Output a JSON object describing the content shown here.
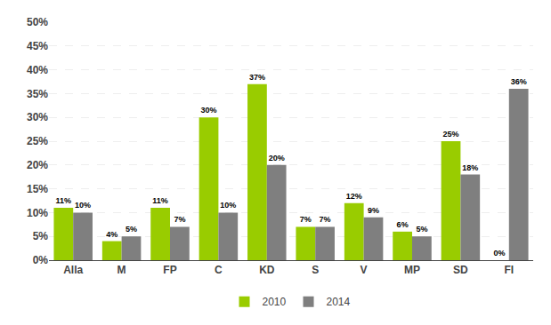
{
  "chart_data": {
    "type": "bar",
    "categories": [
      "Alla",
      "M",
      "FP",
      "C",
      "KD",
      "S",
      "V",
      "MP",
      "SD",
      "FI"
    ],
    "series": [
      {
        "name": "2010",
        "color": "#99cc00",
        "values": [
          11,
          4,
          11,
          30,
          37,
          7,
          12,
          6,
          25,
          0
        ],
        "value_labels": [
          "11%",
          "4%",
          "11%",
          "30%",
          "37%",
          "7%",
          "12%",
          "6%",
          "25%",
          "0%"
        ]
      },
      {
        "name": "2014",
        "color": "#7f7f7f",
        "values": [
          10,
          5,
          7,
          10,
          20,
          7,
          9,
          5,
          18,
          36
        ],
        "value_labels": [
          "10%",
          "5%",
          "7%",
          "10%",
          "20%",
          "7%",
          "9%",
          "5%",
          "18%",
          "36%"
        ]
      }
    ],
    "ylim": [
      0,
      50
    ],
    "yticks": [
      {
        "value": 0,
        "label": "0%"
      },
      {
        "value": 5,
        "label": "5%"
      },
      {
        "value": 10,
        "label": "10%"
      },
      {
        "value": 15,
        "label": "15%"
      },
      {
        "value": 20,
        "label": "20%"
      },
      {
        "value": 25,
        "label": "25%"
      },
      {
        "value": 30,
        "label": "30%"
      },
      {
        "value": 35,
        "label": "35%"
      },
      {
        "value": 40,
        "label": "40%"
      },
      {
        "value": 45,
        "label": "45%"
      },
      {
        "value": 50,
        "label": "50%"
      }
    ],
    "grid": true,
    "legend": "bottom",
    "data_labels": true
  }
}
